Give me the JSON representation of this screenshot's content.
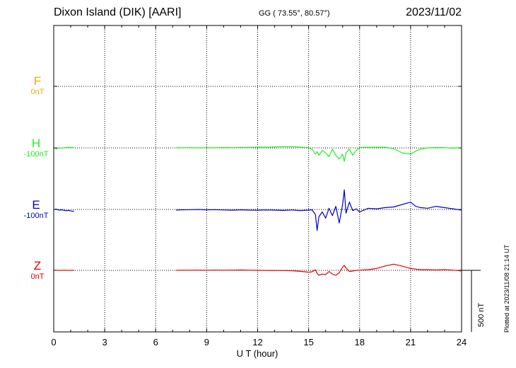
{
  "header": {
    "station": "Dixon Island (DIK)  [AARI]",
    "coords": "GG ( 73.55°,  80.57°)",
    "date": "2023/11/02",
    "plotted": "Plotted at 2023/11/08 21:14 UT"
  },
  "colors": {
    "F": "#f0a800",
    "H": "#22ee22",
    "E": "#0000cc",
    "Z": "#dd0000"
  },
  "chart_data": {
    "type": "line",
    "xlabel": "U T (hour)",
    "xlim": [
      0,
      24
    ],
    "xticks": [
      "0",
      "3",
      "6",
      "9",
      "12",
      "15",
      "18",
      "21",
      "24"
    ],
    "scale_label": "500 nT",
    "channels": [
      {
        "name": "F",
        "offset_label": "0nT",
        "x": [],
        "y": []
      },
      {
        "name": "H",
        "offset_label": "-100nT",
        "x": [
          0.1,
          0.3,
          0.5,
          0.7,
          0.9,
          1.1,
          1.2,
          7.2,
          7.5,
          8,
          8.5,
          9,
          9.5,
          10,
          10.5,
          11,
          11.5,
          12,
          12.5,
          13,
          13.5,
          14,
          14.5,
          15,
          15.2,
          15.4,
          15.5,
          15.6,
          15.8,
          16,
          16.2,
          16.4,
          16.6,
          16.8,
          17,
          17.1,
          17.2,
          17.4,
          17.6,
          17.8,
          18,
          18.5,
          19,
          19.5,
          20,
          20.5,
          21,
          21.3,
          21.6,
          22,
          22.5,
          23,
          23.5,
          24
        ],
        "y": [
          -10,
          0,
          -1,
          3,
          4,
          3,
          2,
          2,
          1,
          2,
          1,
          2,
          1,
          3,
          2,
          4,
          3,
          7,
          6,
          8,
          10,
          9,
          7,
          2,
          -10,
          -50,
          -30,
          -60,
          -20,
          -40,
          -70,
          -10,
          -60,
          -90,
          -50,
          -110,
          -40,
          -10,
          -60,
          -20,
          4,
          5,
          6,
          5,
          -5,
          -40,
          -50,
          -25,
          -10,
          0,
          3,
          2,
          -3,
          5
        ]
      },
      {
        "name": "E",
        "offset_label": "-100nT",
        "x": [
          0.1,
          0.3,
          0.5,
          0.7,
          0.9,
          1.1,
          1.2,
          7.2,
          7.5,
          8,
          8.5,
          9,
          9.5,
          10,
          10.5,
          11,
          11.5,
          12,
          12.5,
          13,
          13.5,
          14,
          14.5,
          15,
          15.2,
          15.4,
          15.5,
          15.6,
          15.8,
          16,
          16.2,
          16.4,
          16.6,
          16.8,
          17,
          17.1,
          17.2,
          17.4,
          17.6,
          17.8,
          18,
          18.5,
          19,
          19.5,
          20,
          20.5,
          21,
          21.3,
          21.6,
          22,
          22.5,
          23,
          23.5,
          24
        ],
        "y": [
          5,
          -5,
          -3,
          -10,
          -8,
          -15,
          -12,
          -5,
          -3,
          -2,
          0,
          -3,
          -2,
          -4,
          -6,
          -3,
          -5,
          -6,
          -4,
          -5,
          -8,
          -4,
          -10,
          -5,
          -3,
          -40,
          -170,
          -60,
          -20,
          -70,
          10,
          -50,
          25,
          -110,
          40,
          160,
          -30,
          60,
          -10,
          5,
          -20,
          10,
          5,
          15,
          20,
          40,
          60,
          25,
          15,
          10,
          25,
          15,
          5,
          -5
        ]
      },
      {
        "name": "Z",
        "offset_label": "0nT",
        "x": [
          0.1,
          0.3,
          0.5,
          0.7,
          0.9,
          1.1,
          1.2,
          7.2,
          7.5,
          8,
          8.5,
          9,
          9.5,
          10,
          10.5,
          11,
          11.5,
          12,
          12.5,
          13,
          13.5,
          14,
          14.5,
          15,
          15.2,
          15.4,
          15.5,
          15.6,
          15.8,
          16,
          16.2,
          16.4,
          16.6,
          16.8,
          17,
          17.1,
          17.2,
          17.4,
          17.6,
          17.8,
          18,
          18.5,
          19,
          19.5,
          20,
          20.5,
          21,
          21.3,
          21.6,
          22,
          22.5,
          23,
          23.5,
          24
        ],
        "y": [
          2,
          -1,
          0,
          1,
          -1,
          0,
          0,
          0,
          1,
          1,
          2,
          1,
          2,
          1,
          2,
          3,
          1,
          0,
          -1,
          -2,
          -2,
          -3,
          -8,
          -15,
          -12,
          5,
          -25,
          -40,
          -30,
          -35,
          -10,
          -30,
          -40,
          -20,
          25,
          40,
          20,
          -10,
          -5,
          0,
          2,
          5,
          15,
          35,
          50,
          35,
          15,
          10,
          5,
          5,
          3,
          5,
          2,
          -5
        ]
      }
    ]
  }
}
